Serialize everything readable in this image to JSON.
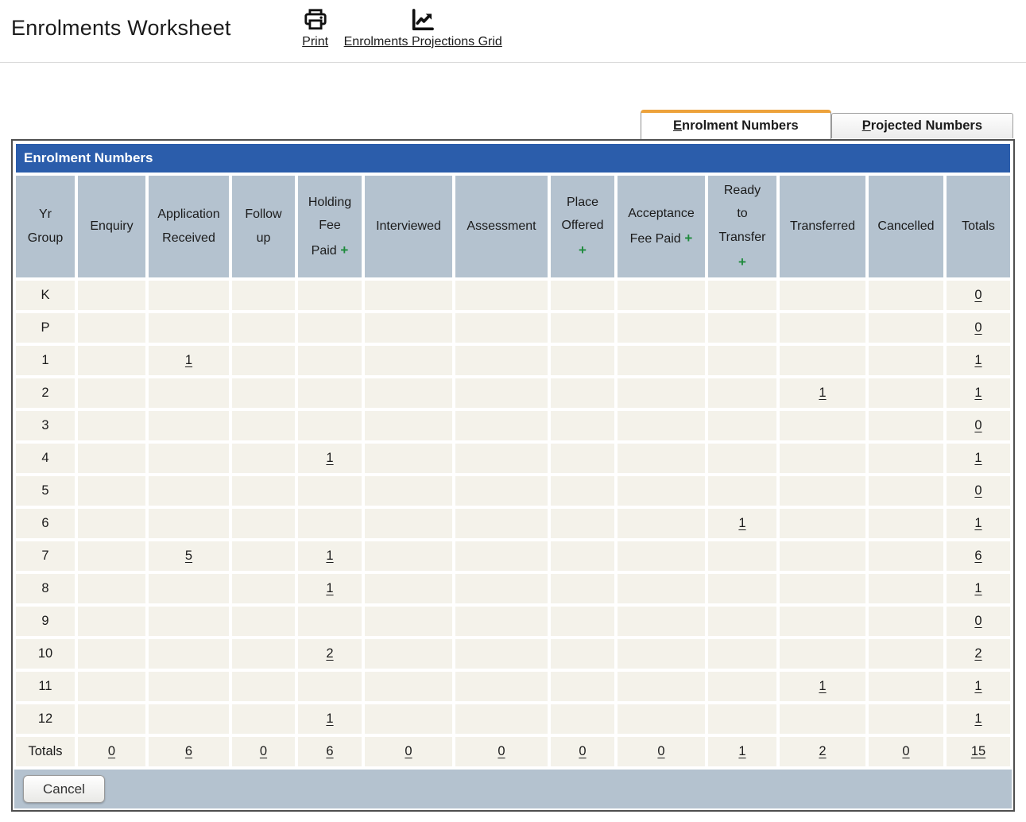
{
  "page": {
    "title": "Enrolments Worksheet"
  },
  "toolbar": {
    "print_label": "Print",
    "projections_label": "Enrolments Projections Grid"
  },
  "tabs": [
    {
      "prefix": "E",
      "rest": "nrolment Numbers",
      "active": true
    },
    {
      "prefix": "P",
      "rest": "rojected Numbers",
      "active": false
    }
  ],
  "panel": {
    "title": "Enrolment Numbers"
  },
  "table": {
    "columns": [
      {
        "label": "Yr\nGroup",
        "plus": ""
      },
      {
        "label": "Enquiry",
        "plus": ""
      },
      {
        "label": "Application\nReceived",
        "plus": ""
      },
      {
        "label": "Follow\nup",
        "plus": ""
      },
      {
        "label": "Holding\nFee\nPaid",
        "plus": " +"
      },
      {
        "label": "Interviewed",
        "plus": ""
      },
      {
        "label": "Assessment",
        "plus": ""
      },
      {
        "label": "Place\nOffered\n",
        "plus": "+"
      },
      {
        "label": "Acceptance\nFee Paid",
        "plus": " +"
      },
      {
        "label": "Ready\nto\nTransfer\n",
        "plus": "+"
      },
      {
        "label": "Transferred",
        "plus": ""
      },
      {
        "label": "Cancelled",
        "plus": ""
      },
      {
        "label": "Totals",
        "plus": ""
      }
    ],
    "rows": [
      {
        "label": "K",
        "cells": [
          "",
          "",
          "",
          "",
          "",
          "",
          "",
          "",
          "",
          "",
          "",
          "0"
        ]
      },
      {
        "label": "P",
        "cells": [
          "",
          "",
          "",
          "",
          "",
          "",
          "",
          "",
          "",
          "",
          "",
          "0"
        ]
      },
      {
        "label": "1",
        "cells": [
          "",
          "1",
          "",
          "",
          "",
          "",
          "",
          "",
          "",
          "",
          "",
          "1"
        ]
      },
      {
        "label": "2",
        "cells": [
          "",
          "",
          "",
          "",
          "",
          "",
          "",
          "",
          "",
          "1",
          "",
          "1"
        ]
      },
      {
        "label": "3",
        "cells": [
          "",
          "",
          "",
          "",
          "",
          "",
          "",
          "",
          "",
          "",
          "",
          "0"
        ]
      },
      {
        "label": "4",
        "cells": [
          "",
          "",
          "",
          "1",
          "",
          "",
          "",
          "",
          "",
          "",
          "",
          "1"
        ]
      },
      {
        "label": "5",
        "cells": [
          "",
          "",
          "",
          "",
          "",
          "",
          "",
          "",
          "",
          "",
          "",
          "0"
        ]
      },
      {
        "label": "6",
        "cells": [
          "",
          "",
          "",
          "",
          "",
          "",
          "",
          "",
          "1",
          "",
          "",
          "1"
        ]
      },
      {
        "label": "7",
        "cells": [
          "",
          "5",
          "",
          "1",
          "",
          "",
          "",
          "",
          "",
          "",
          "",
          "6"
        ]
      },
      {
        "label": "8",
        "cells": [
          "",
          "",
          "",
          "1",
          "",
          "",
          "",
          "",
          "",
          "",
          "",
          "1"
        ]
      },
      {
        "label": "9",
        "cells": [
          "",
          "",
          "",
          "",
          "",
          "",
          "",
          "",
          "",
          "",
          "",
          "0"
        ]
      },
      {
        "label": "10",
        "cells": [
          "",
          "",
          "",
          "2",
          "",
          "",
          "",
          "",
          "",
          "",
          "",
          "2"
        ]
      },
      {
        "label": "11",
        "cells": [
          "",
          "",
          "",
          "",
          "",
          "",
          "",
          "",
          "",
          "1",
          "",
          "1"
        ]
      },
      {
        "label": "12",
        "cells": [
          "",
          "",
          "",
          "1",
          "",
          "",
          "",
          "",
          "",
          "",
          "",
          "1"
        ]
      },
      {
        "label": "Totals",
        "cells": [
          "0",
          "6",
          "0",
          "6",
          "0",
          "0",
          "0",
          "0",
          "1",
          "2",
          "0",
          "15"
        ]
      }
    ]
  },
  "footer": {
    "cancel_label": "Cancel"
  },
  "colors": {
    "accent_blue": "#2b5dab",
    "header_cell": "#b4c2cf",
    "row_cell": "#f4f2ea",
    "tab_accent_orange": "#eda23b",
    "plus_green": "#1e8a3c"
  }
}
